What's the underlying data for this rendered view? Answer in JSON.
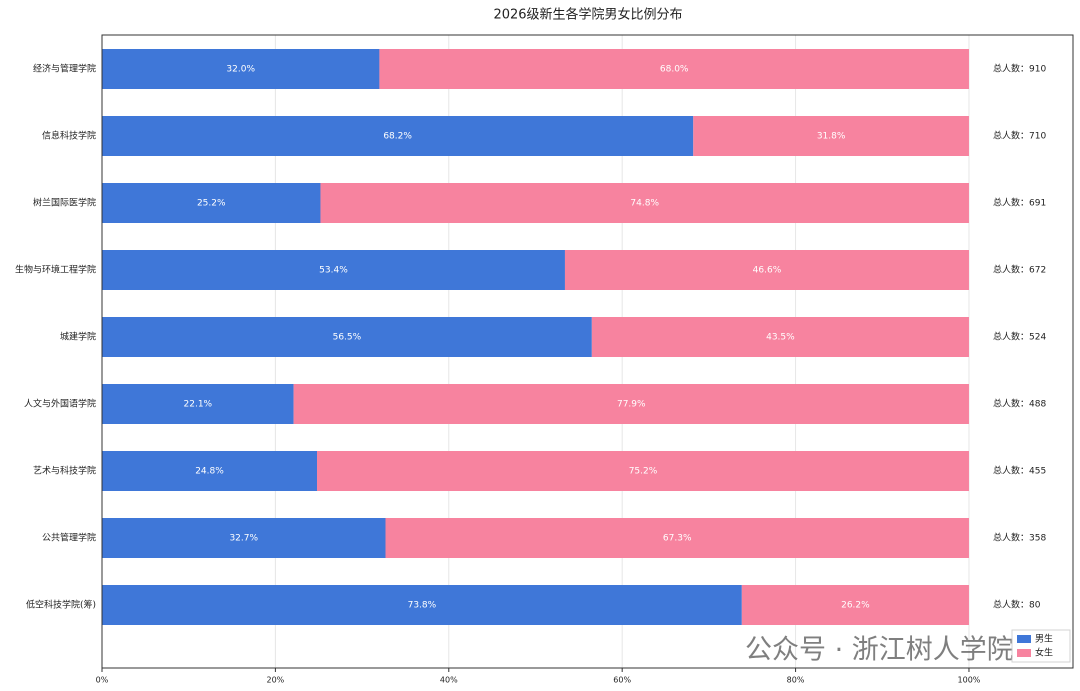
{
  "chart_data": {
    "type": "stacked-barh",
    "title": "2026级新生各学院男女比例分布",
    "categories": [
      "经济与管理学院",
      "信息科技学院",
      "树兰国际医学院",
      "生物与环境工程学院",
      "城建学院",
      "人文与外国语学院",
      "艺术与科技学院",
      "公共管理学院",
      "低空科技学院(筹)"
    ],
    "series": [
      {
        "name": "男生",
        "color": "#3f77d8",
        "values": [
          32.0,
          68.2,
          25.2,
          53.4,
          56.5,
          22.1,
          24.8,
          32.7,
          73.8
        ],
        "value_labels": [
          "32.0%",
          "68.2%",
          "25.2%",
          "53.4%",
          "56.5%",
          "22.1%",
          "24.8%",
          "32.7%",
          "73.8%"
        ]
      },
      {
        "name": "女生",
        "color": "#f7839f",
        "values": [
          68.0,
          31.8,
          74.8,
          46.6,
          43.5,
          77.9,
          75.2,
          67.3,
          26.2
        ],
        "value_labels": [
          "68.0%",
          "31.8%",
          "74.8%",
          "46.6%",
          "43.5%",
          "77.9%",
          "75.2%",
          "67.3%",
          "26.2%"
        ]
      }
    ],
    "annotations": [
      "总人数：910",
      "总人数：710",
      "总人数：691",
      "总人数：672",
      "总人数：524",
      "总人数：488",
      "总人数：455",
      "总人数：358",
      "总人数：80"
    ],
    "xlim": [
      0,
      112
    ],
    "xticks": [
      {
        "value": 0,
        "label": "0%"
      },
      {
        "value": 20,
        "label": "20%"
      },
      {
        "value": 40,
        "label": "40%"
      },
      {
        "value": 60,
        "label": "60%"
      },
      {
        "value": 80,
        "label": "80%"
      },
      {
        "value": 100,
        "label": "100%"
      }
    ],
    "grid": true,
    "legend": "lower right",
    "watermark": "公众号 · 浙江树人学院"
  }
}
